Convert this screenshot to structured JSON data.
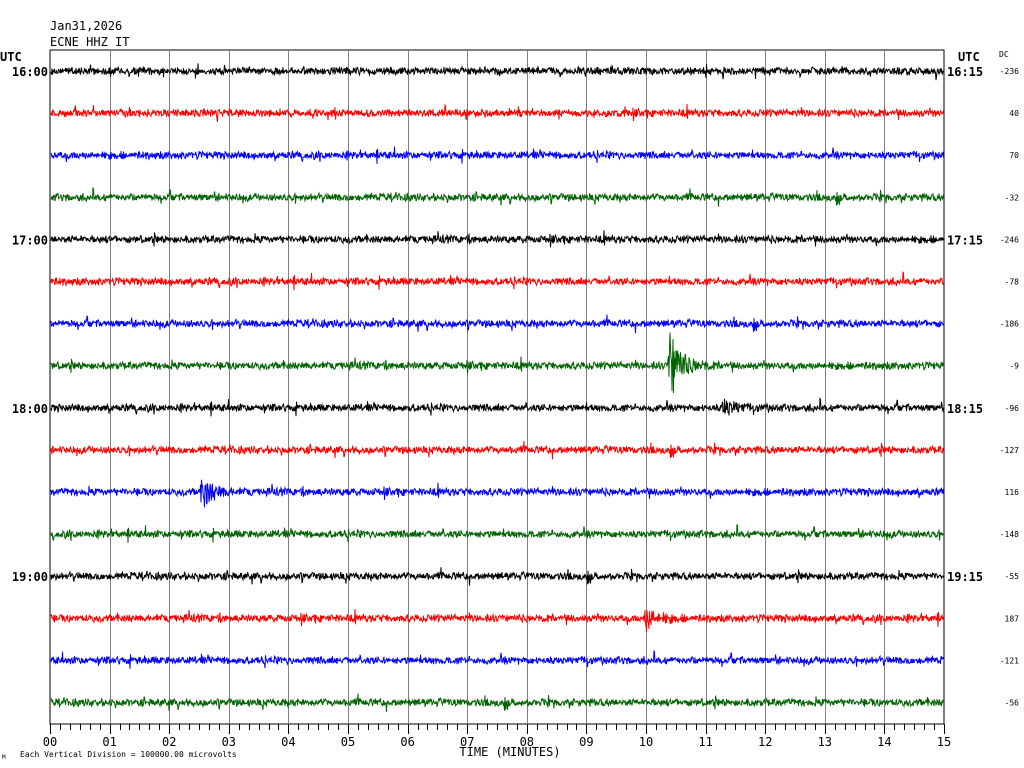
{
  "header": {
    "date": "Jan31,2026",
    "station": "ECNE HHZ IT",
    "utc_left": "UTC",
    "utc_right": "UTC",
    "dc_label": "DC"
  },
  "footer": {
    "xlabel": "TIME (MINUTES)",
    "scale_note": "Each Vertical Division = 100000.00 microvolts",
    "corner_mark": "M"
  },
  "chart_data": {
    "type": "line",
    "title": "",
    "xlabel": "TIME (MINUTES)",
    "ylabel": "",
    "xlim": [
      0,
      15
    ],
    "x_ticks": [
      "00",
      "01",
      "02",
      "03",
      "04",
      "05",
      "06",
      "07",
      "08",
      "09",
      "10",
      "11",
      "12",
      "13",
      "14",
      "15"
    ],
    "grid": true,
    "trace_colors": [
      "#000000",
      "#ff0000",
      "#0000ff",
      "#006400"
    ],
    "traces": [
      {
        "start_label": "16:00",
        "end_label": "16:15",
        "dc": "-236",
        "color": "#000000"
      },
      {
        "start_label": "",
        "end_label": "",
        "dc": "40",
        "color": "#ff0000"
      },
      {
        "start_label": "",
        "end_label": "",
        "dc": "70",
        "color": "#0000ff"
      },
      {
        "start_label": "",
        "end_label": "",
        "dc": "-32",
        "color": "#006400"
      },
      {
        "start_label": "17:00",
        "end_label": "17:15",
        "dc": "-246",
        "color": "#000000"
      },
      {
        "start_label": "",
        "end_label": "",
        "dc": "-78",
        "color": "#ff0000"
      },
      {
        "start_label": "",
        "end_label": "",
        "dc": "-186",
        "color": "#0000ff"
      },
      {
        "start_label": "",
        "end_label": "",
        "dc": "-9",
        "color": "#006400"
      },
      {
        "start_label": "18:00",
        "end_label": "18:15",
        "dc": "-96",
        "color": "#000000"
      },
      {
        "start_label": "",
        "end_label": "",
        "dc": "-127",
        "color": "#ff0000"
      },
      {
        "start_label": "",
        "end_label": "",
        "dc": "116",
        "color": "#0000ff"
      },
      {
        "start_label": "",
        "end_label": "",
        "dc": "-148",
        "color": "#006400"
      },
      {
        "start_label": "19:00",
        "end_label": "19:15",
        "dc": "-55",
        "color": "#000000"
      },
      {
        "start_label": "",
        "end_label": "",
        "dc": "187",
        "color": "#ff0000"
      },
      {
        "start_label": "",
        "end_label": "",
        "dc": "-121",
        "color": "#0000ff"
      },
      {
        "start_label": "",
        "end_label": "",
        "dc": "-56",
        "color": "#006400"
      }
    ],
    "events": [
      {
        "trace": 7,
        "minute": 10.4,
        "amplitude": 1.0
      },
      {
        "trace": 10,
        "minute": 2.55,
        "amplitude": 0.45
      },
      {
        "trace": 13,
        "minute": 10.0,
        "amplitude": 0.35
      },
      {
        "trace": 8,
        "minute": 11.3,
        "amplitude": 0.25
      }
    ]
  }
}
